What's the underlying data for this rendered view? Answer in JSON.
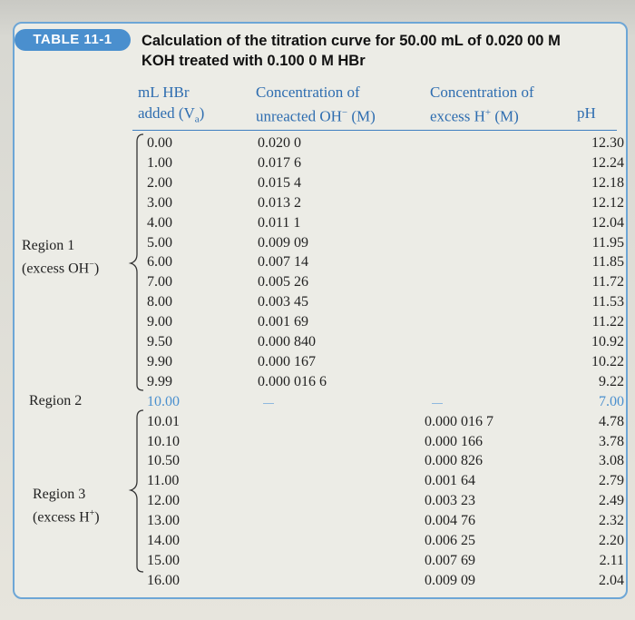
{
  "table": {
    "badge": "TABLE 11-1",
    "title_line1": "Calculation of the titration curve for 50.00 mL of 0.020 00 M",
    "title_line2": "KOH treated with 0.100 0 M HBr",
    "headers": {
      "col1_line1": "mL HBr",
      "col1_line2": "added (V",
      "col1_sub": "a",
      "col1_end": ")",
      "col2_line1": "Concentration of",
      "col2_line2": "unreacted OH",
      "col2_sup": "−",
      "col2_end": " (M)",
      "col3_line1": "Concentration of",
      "col3_line2": "excess H",
      "col3_sup": "+",
      "col3_end": " (M)",
      "col4": "pH"
    },
    "regions": {
      "r1_line1": "Region 1",
      "r1_line2": "(excess OH",
      "r1_sup": "−",
      "r1_end": ")",
      "r2": "Region 2",
      "r3_line1": "Region 3",
      "r3_line2": "(excess H",
      "r3_sup": "+",
      "r3_end": ")"
    },
    "rows": [
      {
        "v": "0.00",
        "oh": "0.020 0",
        "h": "",
        "ph": "12.30"
      },
      {
        "v": "1.00",
        "oh": "0.017 6",
        "h": "",
        "ph": "12.24"
      },
      {
        "v": "2.00",
        "oh": "0.015 4",
        "h": "",
        "ph": "12.18"
      },
      {
        "v": "3.00",
        "oh": "0.013 2",
        "h": "",
        "ph": "12.12"
      },
      {
        "v": "4.00",
        "oh": "0.011 1",
        "h": "",
        "ph": "12.04"
      },
      {
        "v": "5.00",
        "oh": "0.009 09",
        "h": "",
        "ph": "11.95"
      },
      {
        "v": "6.00",
        "oh": "0.007 14",
        "h": "",
        "ph": "11.85"
      },
      {
        "v": "7.00",
        "oh": "0.005 26",
        "h": "",
        "ph": "11.72"
      },
      {
        "v": "8.00",
        "oh": "0.003 45",
        "h": "",
        "ph": "11.53"
      },
      {
        "v": "9.00",
        "oh": "0.001 69",
        "h": "",
        "ph": "11.22"
      },
      {
        "v": "9.50",
        "oh": "0.000 840",
        "h": "",
        "ph": "10.92"
      },
      {
        "v": "9.90",
        "oh": "0.000 167",
        "h": "",
        "ph": "10.22"
      },
      {
        "v": "9.99",
        "oh": "0.000 016 6",
        "h": "",
        "ph": "9.22"
      },
      {
        "v": "10.00",
        "oh": "",
        "h": "",
        "ph": "7.00"
      },
      {
        "v": "10.01",
        "oh": "",
        "h": "0.000 016 7",
        "ph": "4.78"
      },
      {
        "v": "10.10",
        "oh": "",
        "h": "0.000 166",
        "ph": "3.78"
      },
      {
        "v": "10.50",
        "oh": "",
        "h": "0.000 826",
        "ph": "3.08"
      },
      {
        "v": "11.00",
        "oh": "",
        "h": "0.001 64",
        "ph": "2.79"
      },
      {
        "v": "12.00",
        "oh": "",
        "h": "0.003 23",
        "ph": "2.49"
      },
      {
        "v": "13.00",
        "oh": "",
        "h": "0.004 76",
        "ph": "2.32"
      },
      {
        "v": "14.00",
        "oh": "",
        "h": "0.006 25",
        "ph": "2.20"
      },
      {
        "v": "15.00",
        "oh": "",
        "h": "0.007 69",
        "ph": "2.11"
      },
      {
        "v": "16.00",
        "oh": "",
        "h": "0.009 09",
        "ph": "2.04"
      }
    ]
  },
  "colors": {
    "accent": "#4a8fce",
    "border": "#6da6d6",
    "header_text": "#2e6db0",
    "equivalence": "#4a8fce"
  }
}
